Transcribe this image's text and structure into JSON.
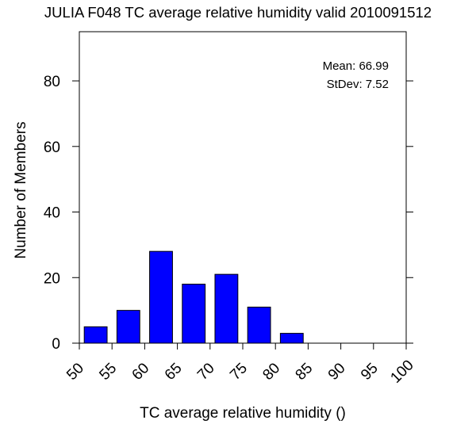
{
  "chart_data": {
    "type": "bar",
    "title": "JULIA F048 TC average relative humidity valid 2010091512",
    "xlabel": "TC average relative humidity ()",
    "ylabel": "Number of Members",
    "bins": [
      {
        "from": 50,
        "to": 55,
        "value": 5
      },
      {
        "from": 55,
        "to": 60,
        "value": 10
      },
      {
        "from": 60,
        "to": 65,
        "value": 28
      },
      {
        "from": 65,
        "to": 70,
        "value": 18
      },
      {
        "from": 70,
        "to": 75,
        "value": 21
      },
      {
        "from": 75,
        "to": 80,
        "value": 11
      },
      {
        "from": 80,
        "to": 85,
        "value": 3
      }
    ],
    "xlim": [
      50,
      100
    ],
    "ylim": [
      0,
      95
    ],
    "xticks": [
      "50",
      "55",
      "60",
      "65",
      "70",
      "75",
      "80",
      "85",
      "90",
      "95",
      "100"
    ],
    "yticks": [
      "0",
      "20",
      "40",
      "60",
      "80"
    ],
    "stats": {
      "mean_label": "Mean: 66.99",
      "stdev_label": "StDev: 7.52"
    },
    "bar_color": "#0000ff",
    "grid": false,
    "legend": "none"
  }
}
